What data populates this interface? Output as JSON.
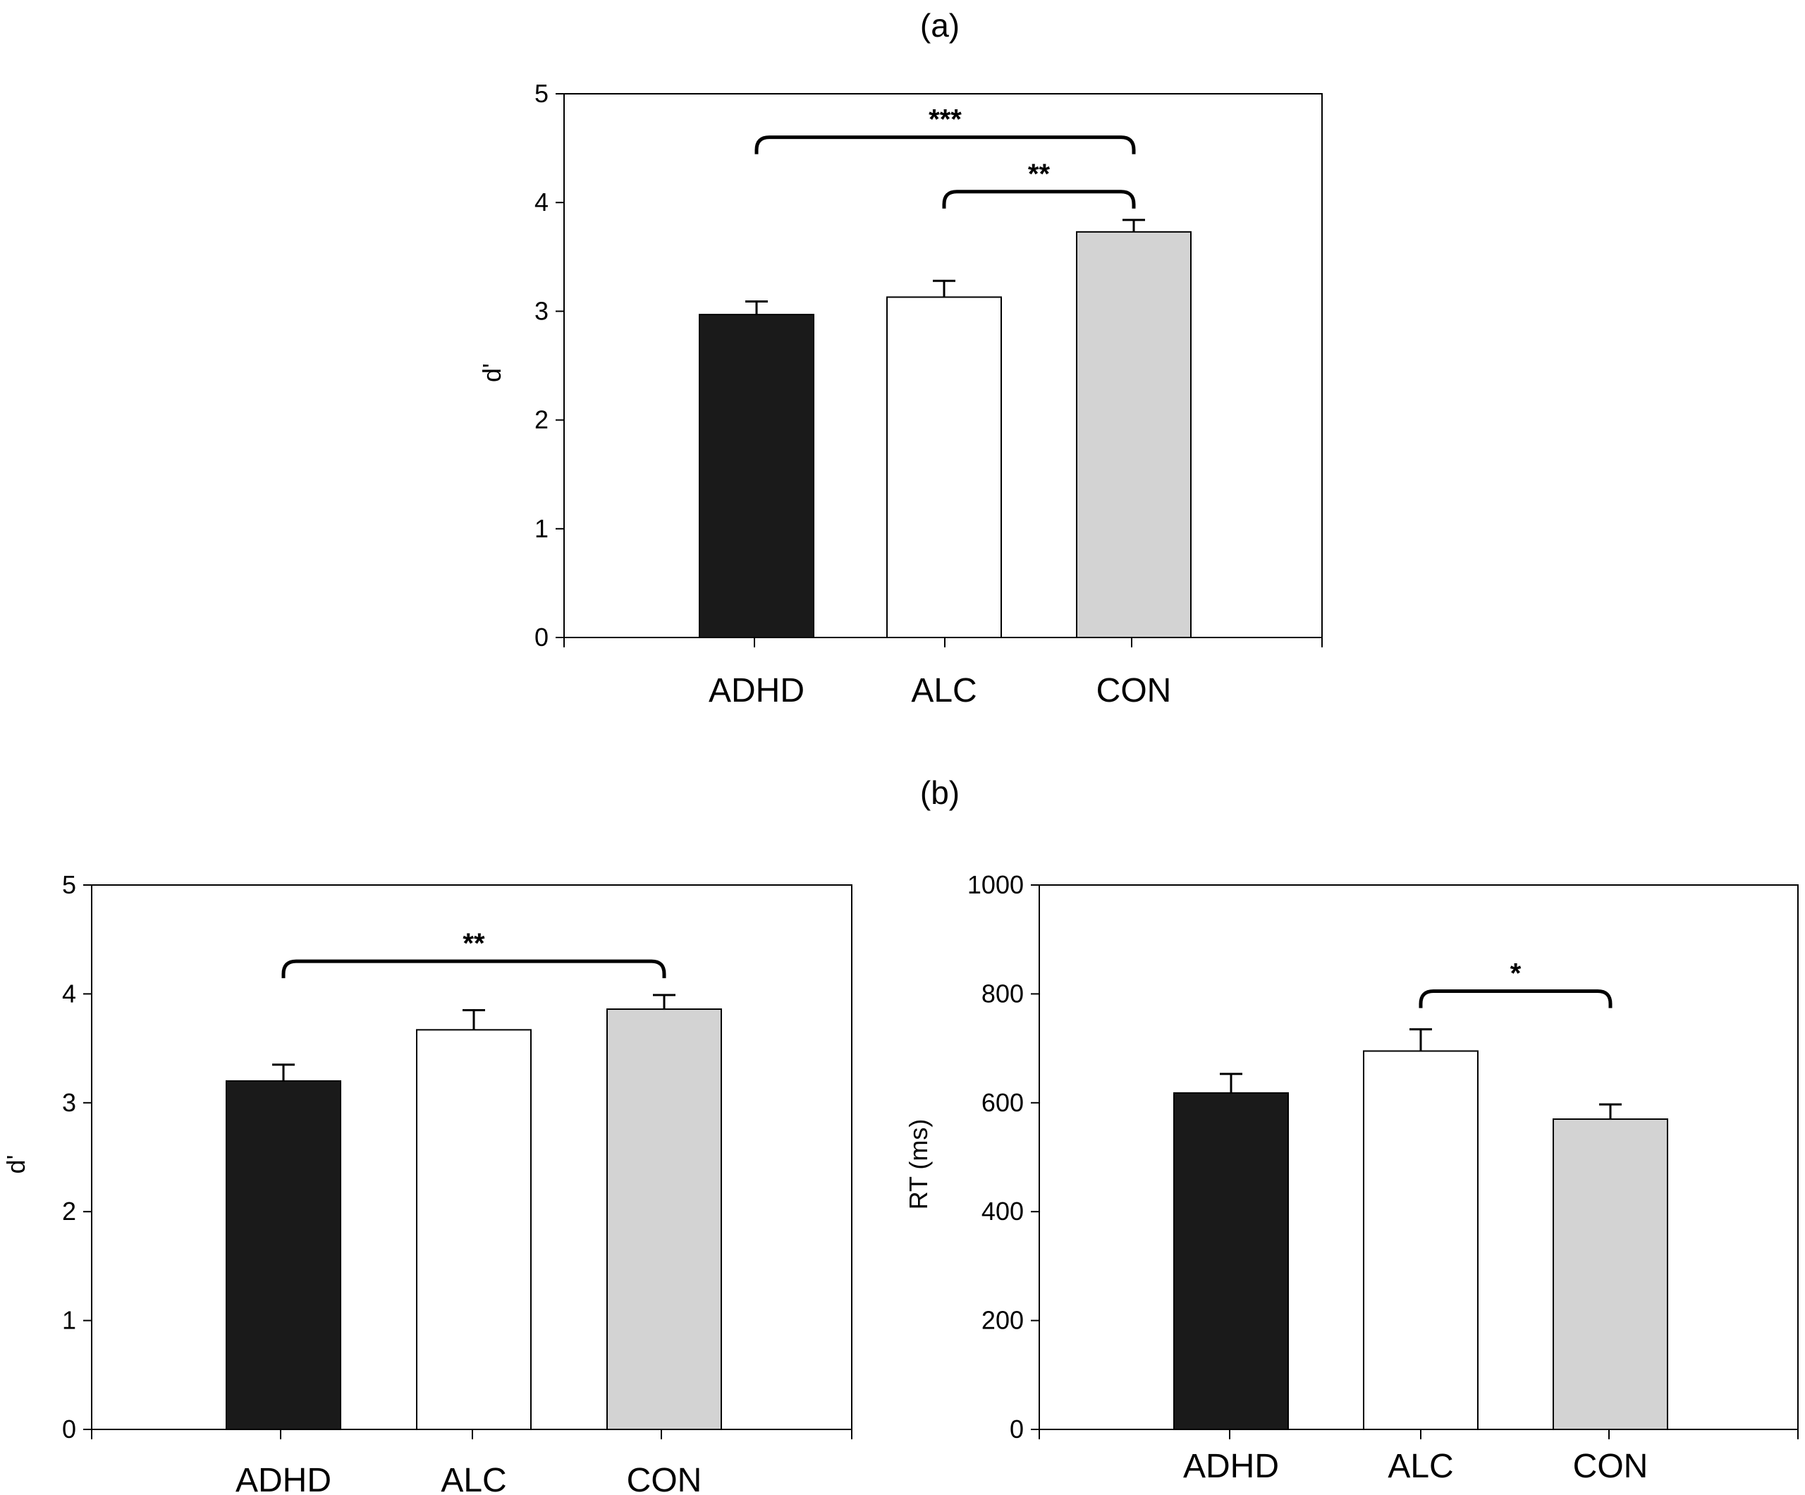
{
  "panel_labels": {
    "a": "(a)",
    "b": "(b)"
  },
  "colors": {
    "ADHD": "#1a1a1a",
    "ALC": "#ffffff",
    "CON": "#d3d3d3",
    "stroke": "#000000"
  },
  "chart_data": [
    {
      "type": "bar",
      "panel": "a",
      "categories": [
        "ADHD",
        "ALC",
        "CON"
      ],
      "values": [
        2.97,
        3.13,
        3.73
      ],
      "errors": [
        0.12,
        0.15,
        0.11
      ],
      "ylabel": "d'",
      "ylim": [
        0,
        5
      ],
      "yticks": [
        "0",
        "1",
        "2",
        "3",
        "4",
        "5"
      ],
      "significance": [
        {
          "from": "ADHD",
          "to": "CON",
          "label": "***",
          "level": 4.6
        },
        {
          "from": "ALC",
          "to": "CON",
          "label": "**",
          "level": 4.1
        }
      ]
    },
    {
      "type": "bar",
      "panel": "b-left",
      "categories": [
        "ADHD",
        "ALC",
        "CON"
      ],
      "values": [
        3.2,
        3.67,
        3.86
      ],
      "errors": [
        0.15,
        0.18,
        0.13
      ],
      "ylabel": "d'",
      "ylim": [
        0,
        5
      ],
      "yticks": [
        "0",
        "1",
        "2",
        "3",
        "4",
        "5"
      ],
      "significance": [
        {
          "from": "ADHD",
          "to": "CON",
          "label": "**",
          "level": 4.3
        }
      ]
    },
    {
      "type": "bar",
      "panel": "b-right",
      "categories": [
        "ADHD",
        "ALC",
        "CON"
      ],
      "values": [
        618,
        695,
        570
      ],
      "errors": [
        35,
        40,
        27
      ],
      "ylabel": "RT (ms)",
      "ylim": [
        0,
        1000
      ],
      "yticks": [
        "0",
        "200",
        "400",
        "600",
        "800",
        "1000"
      ],
      "significance": [
        {
          "from": "ALC",
          "to": "CON",
          "label": "*",
          "level": 805
        }
      ]
    }
  ]
}
